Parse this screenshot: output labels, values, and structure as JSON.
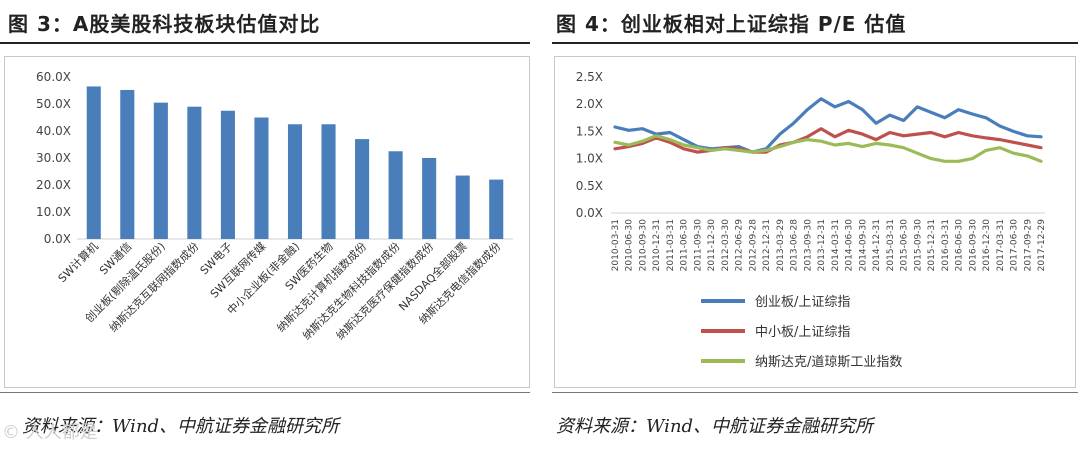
{
  "left_panel": {
    "title": "图 3：A股美股科技板块估值对比",
    "source": "资料来源：Wind、中航证券金融研究所"
  },
  "right_panel": {
    "title": "图 4：创业板相对上证综指 P/E 估值",
    "source": "资料来源：Wind、中航证券金融研究所"
  },
  "watermark": "© 人人都是",
  "chart_data": [
    {
      "type": "bar",
      "title": "",
      "xlabel": "",
      "ylabel": "",
      "color": "#4a7ebb",
      "ylim": [
        0,
        60
      ],
      "yticks": [
        "0.0X",
        "10.0X",
        "20.0X",
        "30.0X",
        "40.0X",
        "50.0X",
        "60.0X"
      ],
      "grid": false,
      "categories": [
        "SW计算机",
        "SW通信",
        "创业板(剔除温氏股份)",
        "纳斯达克互联网指数成份",
        "SW电子",
        "SW互联网传媒",
        "中小企业板(非金融)",
        "SW医药生物",
        "纳斯达克计算机指数成份",
        "纳斯达克生物科技指数成份",
        "纳斯达克医疗保健指数成份",
        "NASDAQ全部股票",
        "纳斯达克电信指数成份"
      ],
      "values": [
        56.5,
        55.2,
        50.5,
        49.0,
        47.5,
        45.0,
        42.5,
        42.5,
        37.0,
        32.5,
        30.0,
        23.5,
        22.0
      ]
    },
    {
      "type": "line",
      "title": "",
      "xlabel": "",
      "ylabel": "",
      "ylim": [
        0,
        2.5
      ],
      "yticks": [
        "0.0X",
        "0.5X",
        "1.0X",
        "1.5X",
        "2.0X",
        "2.5X"
      ],
      "grid": false,
      "legend": "bottom-center",
      "x": [
        "2010-03-31",
        "2010-06-30",
        "2010-09-30",
        "2010-12-31",
        "2011-03-31",
        "2011-06-30",
        "2011-09-30",
        "2011-12-30",
        "2012-03-30",
        "2012-06-29",
        "2012-09-28",
        "2012-12-31",
        "2013-03-29",
        "2013-06-28",
        "2013-09-30",
        "2013-12-31",
        "2014-03-31",
        "2014-06-30",
        "2014-09-30",
        "2014-12-31",
        "2015-03-31",
        "2015-06-30",
        "2015-09-30",
        "2015-12-31",
        "2016-03-31",
        "2016-06-30",
        "2016-09-30",
        "2016-12-30",
        "2017-03-31",
        "2017-06-30",
        "2017-09-29",
        "2017-12-29"
      ],
      "series": [
        {
          "name": "创业板/上证综指",
          "color": "#4a7ebb",
          "values": [
            1.58,
            1.52,
            1.55,
            1.45,
            1.48,
            1.35,
            1.22,
            1.18,
            1.2,
            1.22,
            1.12,
            1.18,
            1.45,
            1.65,
            1.9,
            2.1,
            1.95,
            2.05,
            1.9,
            1.65,
            1.8,
            1.7,
            1.95,
            1.85,
            1.75,
            1.9,
            1.82,
            1.75,
            1.6,
            1.5,
            1.42,
            1.4
          ]
        },
        {
          "name": "中小板/上证综指",
          "color": "#c0504d",
          "values": [
            1.18,
            1.22,
            1.28,
            1.38,
            1.3,
            1.18,
            1.12,
            1.15,
            1.2,
            1.18,
            1.12,
            1.12,
            1.25,
            1.3,
            1.4,
            1.55,
            1.4,
            1.52,
            1.45,
            1.35,
            1.48,
            1.42,
            1.45,
            1.48,
            1.4,
            1.48,
            1.42,
            1.38,
            1.35,
            1.3,
            1.25,
            1.2
          ]
        },
        {
          "name": "纳斯达克/道琼斯工业指数",
          "color": "#9bbb59",
          "values": [
            1.3,
            1.25,
            1.32,
            1.42,
            1.35,
            1.25,
            1.2,
            1.15,
            1.18,
            1.15,
            1.12,
            1.15,
            1.22,
            1.3,
            1.35,
            1.32,
            1.25,
            1.28,
            1.22,
            1.28,
            1.25,
            1.2,
            1.1,
            1.0,
            0.95,
            0.95,
            1.0,
            1.15,
            1.2,
            1.1,
            1.05,
            0.95
          ]
        }
      ]
    }
  ]
}
